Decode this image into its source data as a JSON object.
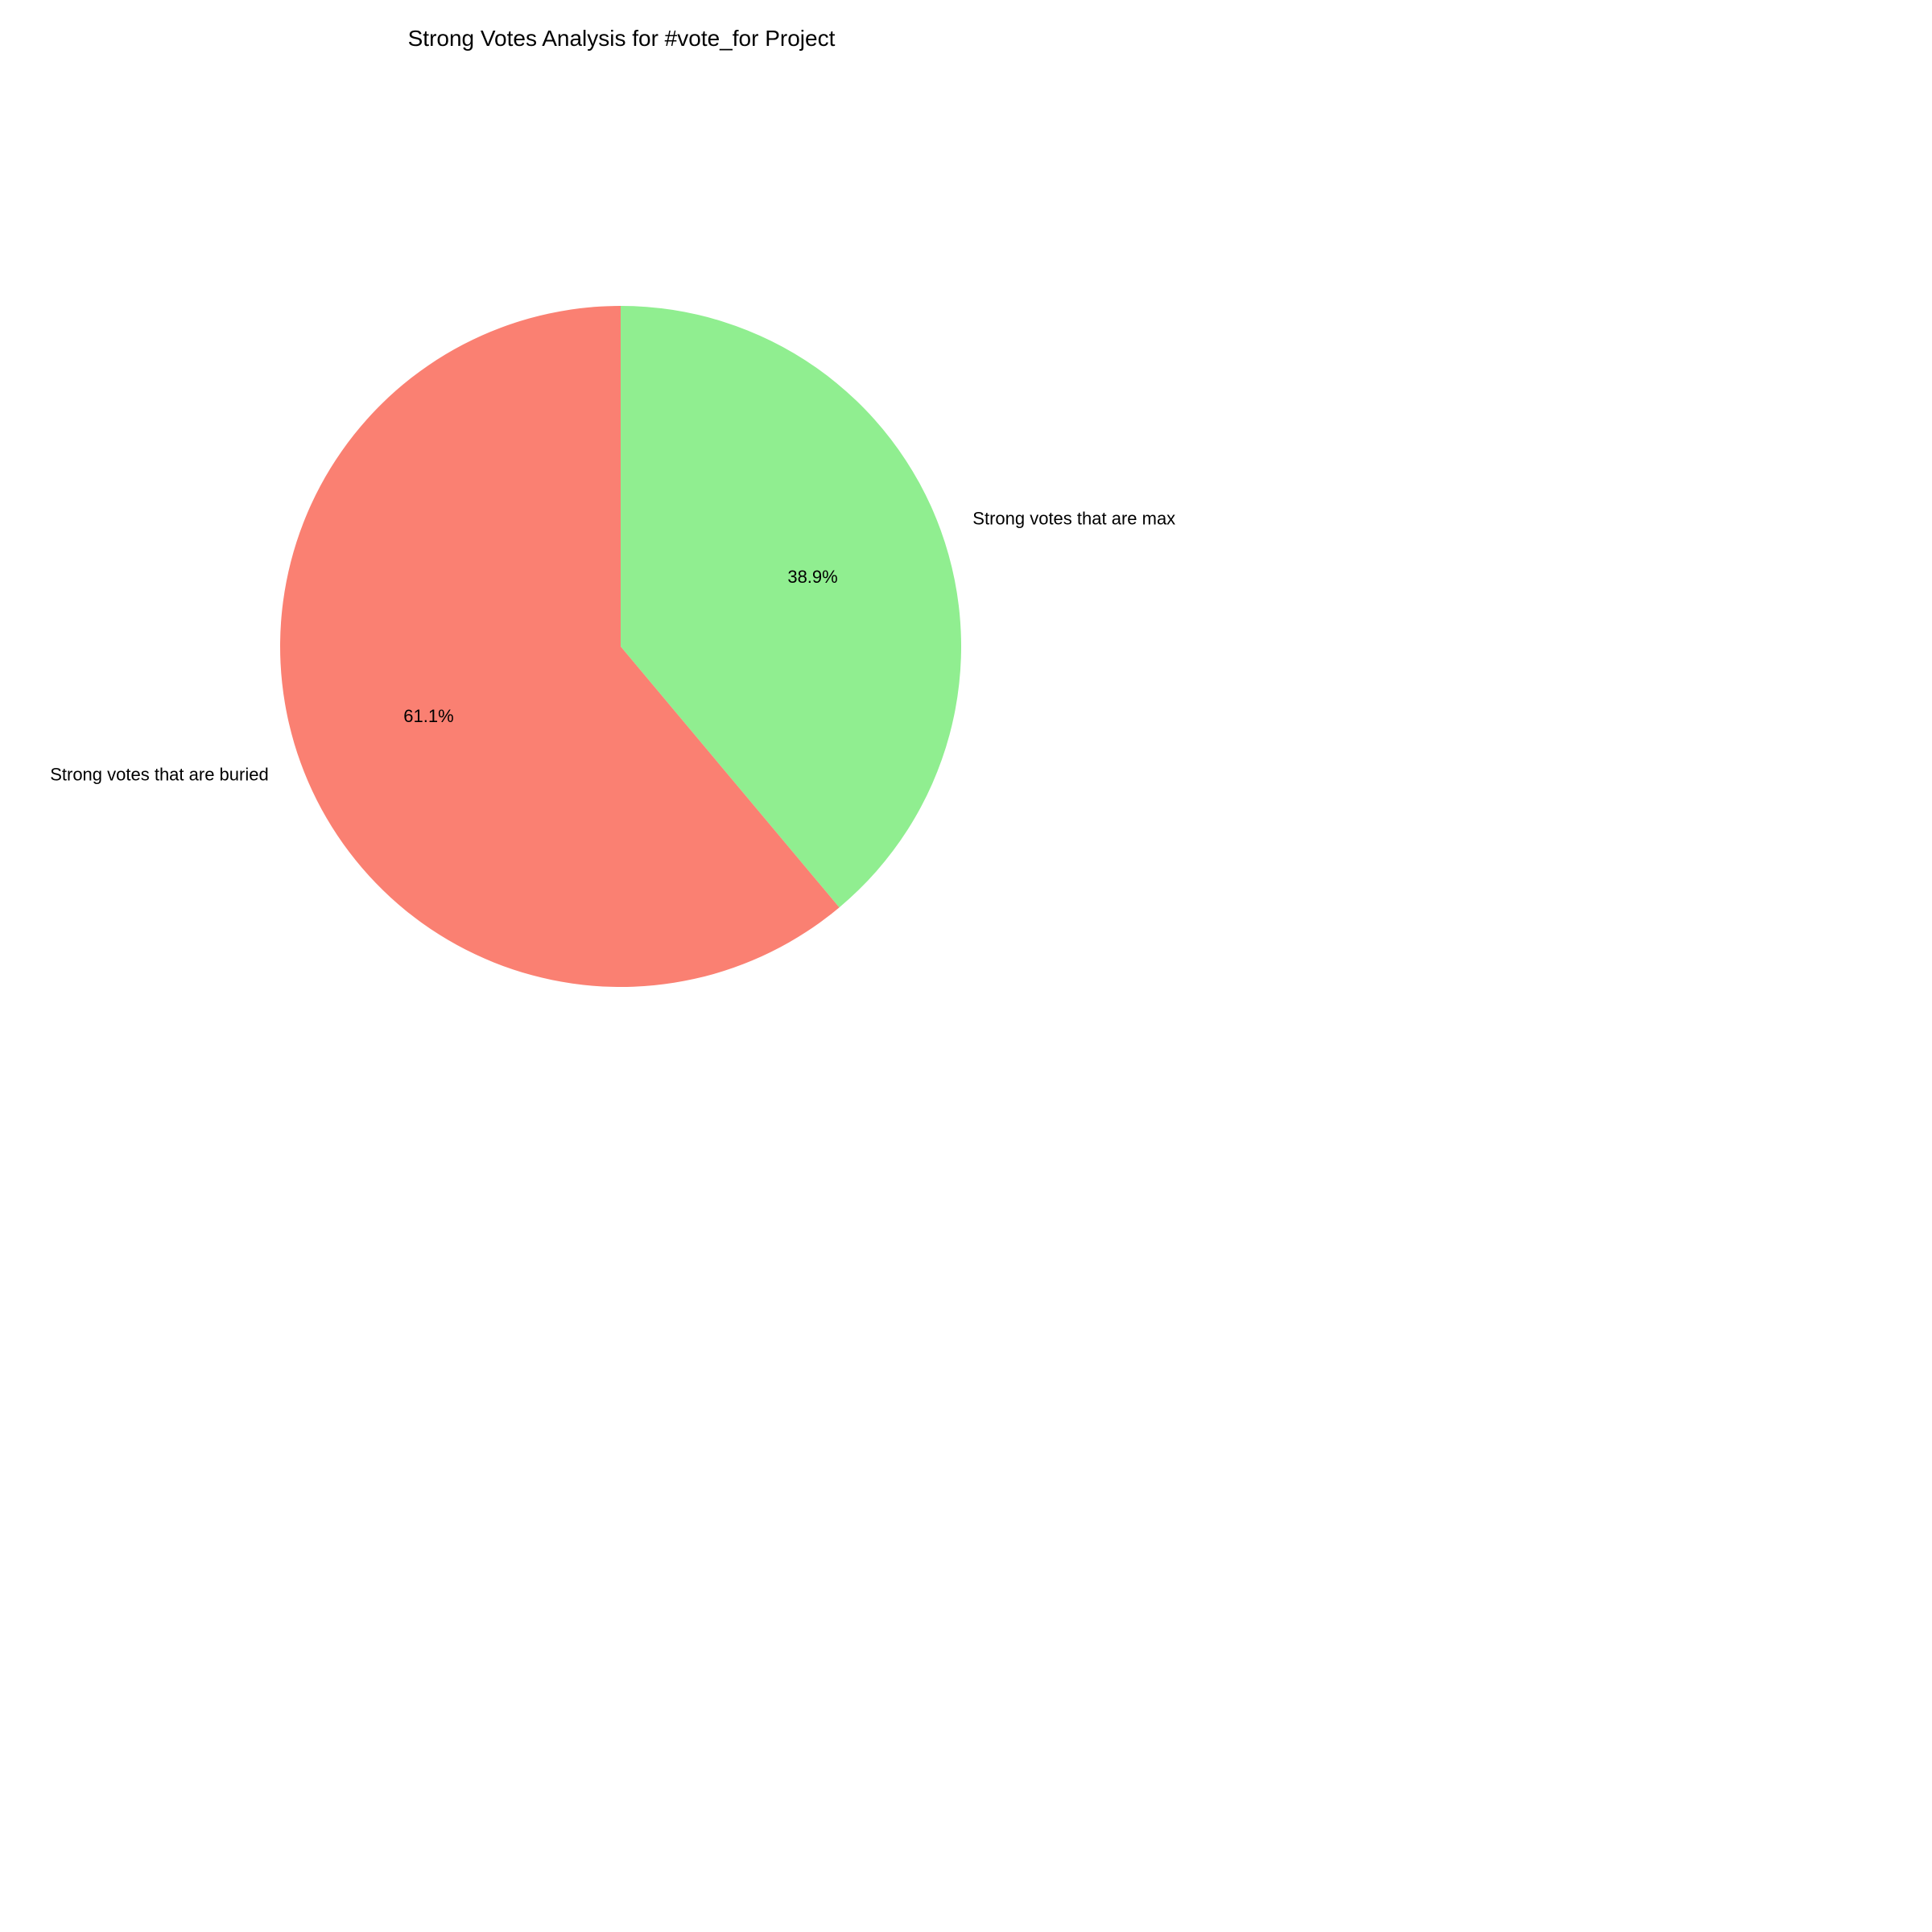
{
  "chart_data": {
    "type": "pie",
    "title": "Strong Votes Analysis for #vote_for Project",
    "labels": [
      "Strong votes that are buried",
      "Strong votes that are max"
    ],
    "values": [
      61.1,
      38.9
    ],
    "percent_labels": [
      "61.1%",
      "38.9%"
    ],
    "colors": [
      "#FA8072",
      "#90EE90"
    ],
    "start_angle_degrees": 90,
    "direction": "counterclockwise",
    "legend": "none"
  }
}
